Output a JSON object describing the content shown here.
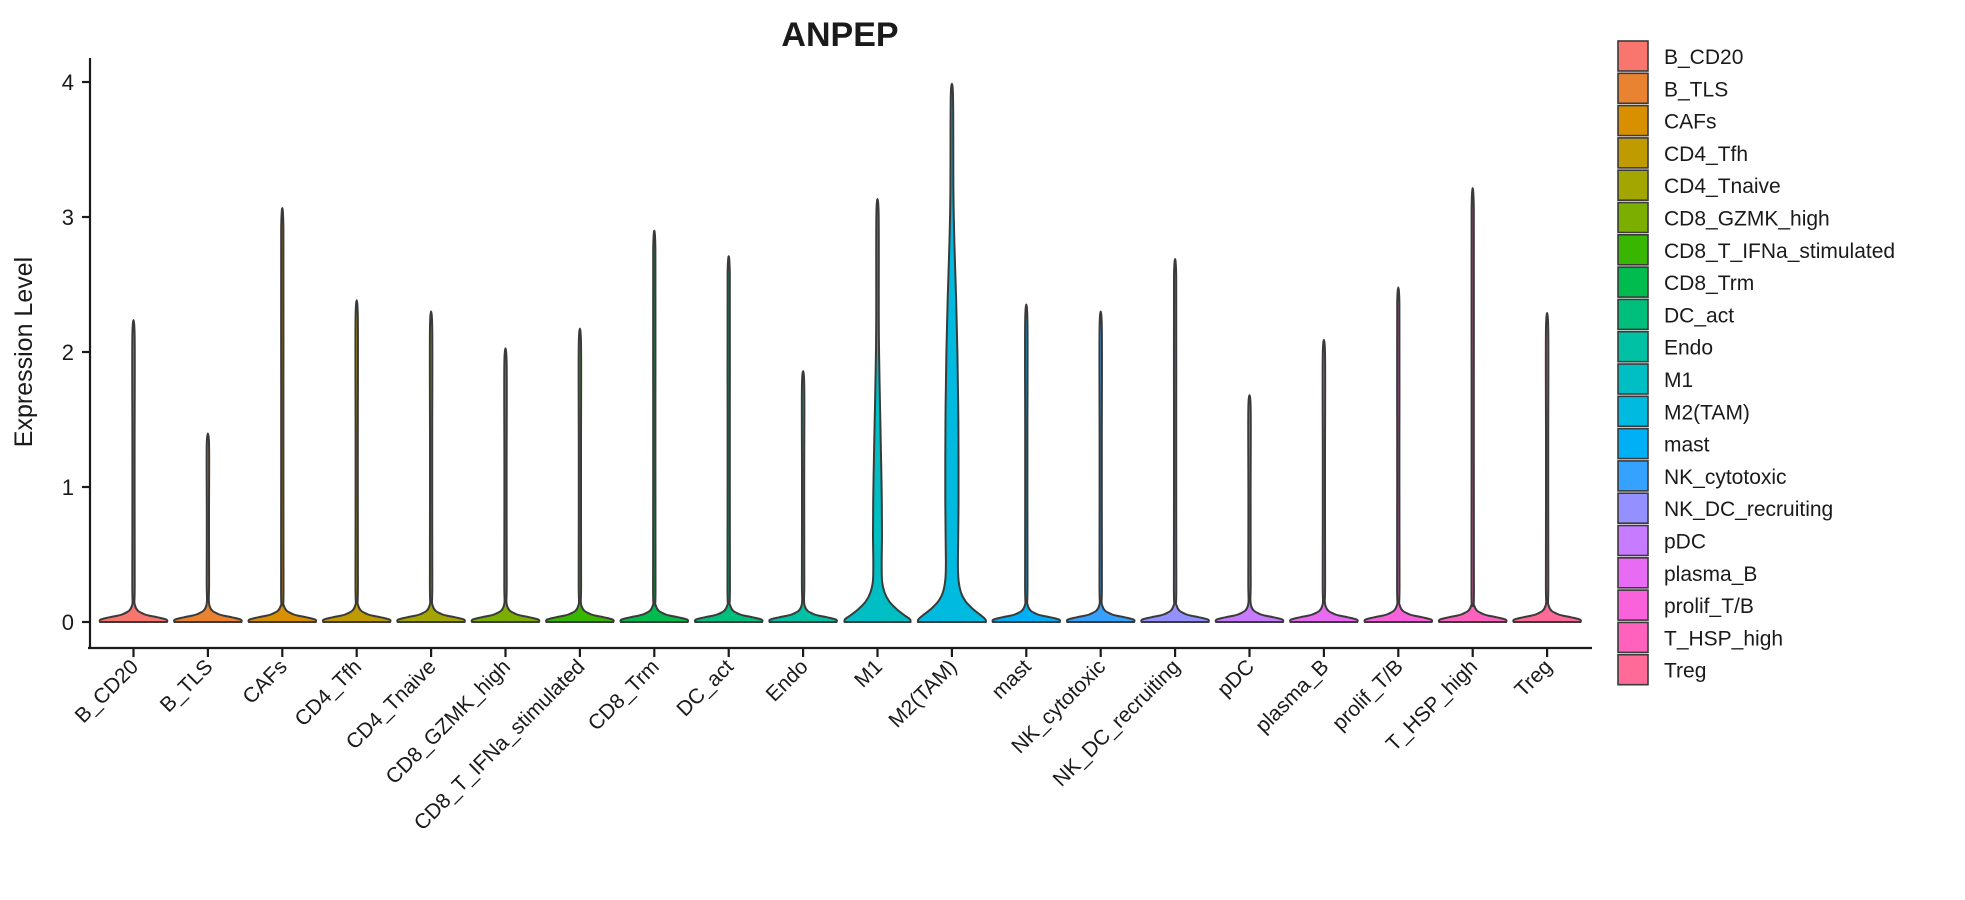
{
  "figure": {
    "title": "ANPEP",
    "ylabel": "Expression Level"
  },
  "chart_data": {
    "type": "violin",
    "title": "ANPEP",
    "xlabel": "",
    "ylabel": "Expression Level",
    "ylim": [
      0,
      4
    ],
    "yticks": [
      0,
      1,
      2,
      3,
      4
    ],
    "grid": false,
    "legend_position": "right",
    "categories": [
      "B_CD20",
      "B_TLS",
      "CAFs",
      "CD4_Tfh",
      "CD4_Tnaive",
      "CD8_GZMK_high",
      "CD8_T_IFNa_stimulated",
      "CD8_Trm",
      "DC_act",
      "Endo",
      "M1",
      "M2(TAM)",
      "mast",
      "NK_cytotoxic",
      "NK_DC_recruiting",
      "pDC",
      "plasma_B",
      "prolif_T/B",
      "T_HSP_high",
      "Treg"
    ],
    "palette": [
      "#F8766D",
      "#EA8331",
      "#D89000",
      "#C09B00",
      "#A3A500",
      "#7CAE00",
      "#39B600",
      "#00BB4E",
      "#00BF7D",
      "#00C1A3",
      "#00BFC4",
      "#00BAE0",
      "#00B0F6",
      "#35A2FF",
      "#9590FF",
      "#C77CFF",
      "#E76BF3",
      "#FA62DB",
      "#FF62BC",
      "#FF6A98"
    ],
    "violins": [
      {
        "category": "B_CD20",
        "color": "#F8766D",
        "peak": 2.13,
        "shape": "spike"
      },
      {
        "category": "B_TLS",
        "color": "#EA8331",
        "peak": 1.33,
        "shape": "spike"
      },
      {
        "category": "CAFs",
        "color": "#D89000",
        "peak": 2.92,
        "shape": "spike"
      },
      {
        "category": "CD4_Tfh",
        "color": "#C09B00",
        "peak": 2.27,
        "shape": "spike"
      },
      {
        "category": "CD4_Tnaive",
        "color": "#A3A500",
        "peak": 2.19,
        "shape": "spike"
      },
      {
        "category": "CD8_GZMK_high",
        "color": "#7CAE00",
        "peak": 1.93,
        "shape": "spike"
      },
      {
        "category": "CD8_T_IFNa_stimulated",
        "color": "#39B600",
        "peak": 2.07,
        "shape": "spike"
      },
      {
        "category": "CD8_Trm",
        "color": "#00BB4E",
        "peak": 2.76,
        "shape": "spike"
      },
      {
        "category": "DC_act",
        "color": "#00BF7D",
        "peak": 2.58,
        "shape": "spike"
      },
      {
        "category": "Endo",
        "color": "#00C1A3",
        "peak": 1.77,
        "shape": "spike"
      },
      {
        "category": "M1",
        "color": "#00BFC4",
        "peak": 3.03,
        "shape": "body",
        "profile": [
          [
            3.03,
            1.1
          ],
          [
            2.2,
            1.3
          ],
          [
            1.8,
            2.0
          ],
          [
            1.5,
            2.8
          ],
          [
            1.2,
            3.6
          ],
          [
            0.9,
            4.3
          ],
          [
            0.65,
            4.5
          ],
          [
            0.45,
            4.2
          ],
          [
            0.3,
            4.6
          ],
          [
            0.22,
            7
          ],
          [
            0.15,
            12
          ],
          [
            0.09,
            20
          ],
          [
            0.05,
            27
          ],
          [
            0.02,
            32.5
          ],
          [
            0,
            33
          ]
        ]
      },
      {
        "category": "M2(TAM)",
        "color": "#00BAE0",
        "peak": 3.9,
        "shape": "body",
        "profile": [
          [
            3.9,
            1.1
          ],
          [
            3.2,
            1.5
          ],
          [
            2.8,
            2.5
          ],
          [
            2.4,
            4.2
          ],
          [
            2.0,
            5.5
          ],
          [
            1.6,
            6.3
          ],
          [
            1.2,
            6.6
          ],
          [
            0.9,
            6.6
          ],
          [
            0.65,
            6.3
          ],
          [
            0.45,
            6.0
          ],
          [
            0.32,
            6.5
          ],
          [
            0.22,
            9
          ],
          [
            0.15,
            14
          ],
          [
            0.09,
            22
          ],
          [
            0.05,
            29
          ],
          [
            0.02,
            33.5
          ],
          [
            0,
            34
          ]
        ]
      },
      {
        "category": "mast",
        "color": "#00B0F6",
        "peak": 2.24,
        "shape": "spike"
      },
      {
        "category": "NK_cytotoxic",
        "color": "#35A2FF",
        "peak": 2.19,
        "shape": "spike"
      },
      {
        "category": "NK_DC_recruiting",
        "color": "#9590FF",
        "peak": 2.56,
        "shape": "spike"
      },
      {
        "category": "pDC",
        "color": "#C77CFF",
        "peak": 1.6,
        "shape": "spike"
      },
      {
        "category": "plasma_B",
        "color": "#E76BF3",
        "peak": 1.99,
        "shape": "spike"
      },
      {
        "category": "prolif_T/B",
        "color": "#FA62DB",
        "peak": 2.36,
        "shape": "spike"
      },
      {
        "category": "T_HSP_high",
        "color": "#FF62BC",
        "peak": 3.06,
        "shape": "spike"
      },
      {
        "category": "Treg",
        "color": "#FF6A98",
        "peak": 2.18,
        "shape": "spike"
      }
    ],
    "colors": {
      "violin_outline": "#3a3a3a",
      "axis": "#1a1a1a",
      "text": "#1a1a1a"
    }
  }
}
